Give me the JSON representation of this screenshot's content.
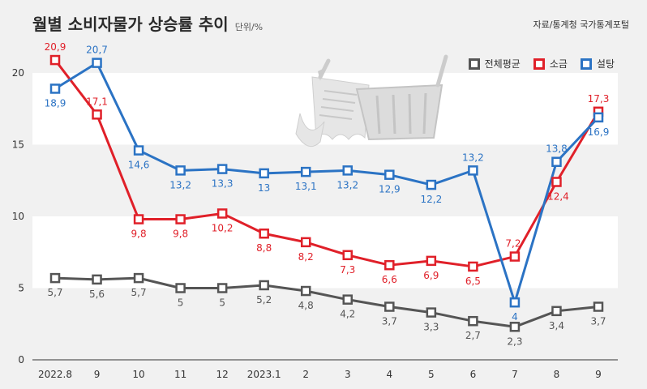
{
  "header": {
    "title": "월별 소비자물가 상승률 추이",
    "unit": "단위/%",
    "source": "자료/통계청 국가통계포털"
  },
  "colors": {
    "background": "#f1f1f1",
    "band": "#ffffff",
    "overall": "#555555",
    "salt": "#e02029",
    "sugar": "#2b73c4"
  },
  "icon": "shopping-basket-receipt-icon",
  "chart_data": {
    "type": "line",
    "categories": [
      "2022.8",
      "9",
      "10",
      "11",
      "12",
      "2023.1",
      "2",
      "3",
      "4",
      "5",
      "6",
      "7",
      "8",
      "9"
    ],
    "ylim": [
      0,
      20
    ],
    "yticks": [
      0,
      5,
      10,
      15,
      20
    ],
    "legend_position": "top-right",
    "series": [
      {
        "name": "전체평균",
        "key": "overall",
        "values": [
          5.7,
          5.6,
          5.7,
          5,
          5,
          5.2,
          4.8,
          4.2,
          3.7,
          3.3,
          2.7,
          2.3,
          3.4,
          3.7
        ],
        "labels": [
          "5,7",
          "5,6",
          "5,7",
          "5",
          "5",
          "5,2",
          "4,8",
          "4,2",
          "3,7",
          "3,3",
          "2,7",
          "2,3",
          "3,4",
          "3,7"
        ]
      },
      {
        "name": "소금",
        "key": "salt",
        "values": [
          20.9,
          17.1,
          9.8,
          9.8,
          10.2,
          8.8,
          8.2,
          7.3,
          6.6,
          6.9,
          6.5,
          7.2,
          12.4,
          17.3
        ],
        "labels": [
          "20,9",
          "17,1",
          "9,8",
          "9,8",
          "10,2",
          "8,8",
          "8,2",
          "7,3",
          "6,6",
          "6,9",
          "6,5",
          "7,2",
          "12,4",
          "17,3"
        ]
      },
      {
        "name": "설탕",
        "key": "sugar",
        "values": [
          18.9,
          20.7,
          14.6,
          13.2,
          13.3,
          13,
          13.1,
          13.2,
          12.9,
          12.2,
          13.2,
          4,
          13.8,
          16.9
        ],
        "labels": [
          "18,9",
          "20,7",
          "14,6",
          "13,2",
          "13,3",
          "13",
          "13,1",
          "13,2",
          "12,9",
          "12,2",
          "13,2",
          "4",
          "13,8",
          "16,9"
        ]
      }
    ]
  }
}
